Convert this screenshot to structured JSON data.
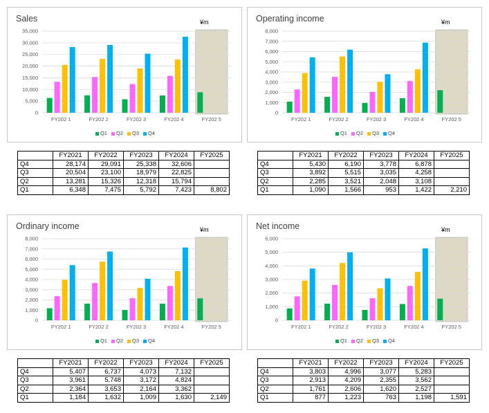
{
  "colors": {
    "Q1": "#00b050",
    "Q2": "#ff66ff",
    "Q3": "#ffc000",
    "Q4": "#00b0f0",
    "highlight": "#ddd9c4",
    "grid": "#d9d9d9",
    "axis_text": "#595959"
  },
  "chart_data": [
    {
      "type": "bar",
      "title": "Sales",
      "unit": "¥m",
      "categories": [
        "FY2021",
        "FY2022",
        "FY2023",
        "FY2024",
        "FY2025"
      ],
      "category_labels": [
        "FY202 1",
        "FY202 2",
        "FY202 3",
        "FY202 4",
        "FY202 5"
      ],
      "series": [
        {
          "name": "Q1",
          "values": [
            6348,
            7475,
            5792,
            7423,
            8802
          ]
        },
        {
          "name": "Q2",
          "values": [
            13281,
            15326,
            12318,
            15794,
            null
          ]
        },
        {
          "name": "Q3",
          "values": [
            20504,
            23100,
            18979,
            22825,
            null
          ]
        },
        {
          "name": "Q4",
          "values": [
            28174,
            29091,
            25338,
            32606,
            null
          ]
        }
      ],
      "ylim": [
        0,
        35000
      ],
      "yticks": [
        0,
        5000,
        10000,
        15000,
        20000,
        25000,
        30000,
        35000
      ],
      "ytick_labels": [
        "0",
        "5,000",
        "10,000",
        "15,000",
        "20,000",
        "25,000",
        "30,000",
        "35,000"
      ],
      "highlight_category": "FY2025",
      "legend_position": "bottom",
      "grid": true
    },
    {
      "type": "bar",
      "title": "Operating income",
      "unit": "¥m",
      "categories": [
        "FY2021",
        "FY2022",
        "FY2023",
        "FY2024",
        "FY2025"
      ],
      "category_labels": [
        "FY202 1",
        "FY202 2",
        "FY202 3",
        "FY202 4",
        "FY202 5"
      ],
      "series": [
        {
          "name": "Q1",
          "values": [
            1090,
            1566,
            953,
            1422,
            2210
          ]
        },
        {
          "name": "Q2",
          "values": [
            2285,
            3521,
            2048,
            3108,
            null
          ]
        },
        {
          "name": "Q3",
          "values": [
            3892,
            5515,
            3035,
            4258,
            null
          ]
        },
        {
          "name": "Q4",
          "values": [
            5430,
            6190,
            3778,
            6878,
            null
          ]
        }
      ],
      "ylim": [
        0,
        8000
      ],
      "yticks": [
        0,
        1000,
        2000,
        3000,
        4000,
        5000,
        6000,
        7000,
        8000
      ],
      "ytick_labels": [
        "0",
        "1,000",
        "2,000",
        "3,000",
        "4,000",
        "5,000",
        "6,000",
        "7,000",
        "8,000"
      ],
      "highlight_category": "FY2025",
      "legend_position": "bottom",
      "grid": true
    },
    {
      "type": "bar",
      "title": "Ordinary income",
      "unit": "¥m",
      "categories": [
        "FY2021",
        "FY2022",
        "FY2023",
        "FY2024",
        "FY2025"
      ],
      "category_labels": [
        "FY202 1",
        "FY202 2",
        "FY202 3",
        "FY202 4",
        "FY202 5"
      ],
      "series": [
        {
          "name": "Q1",
          "values": [
            1184,
            1632,
            1009,
            1630,
            2149
          ]
        },
        {
          "name": "Q2",
          "values": [
            2364,
            3653,
            2164,
            3362,
            null
          ]
        },
        {
          "name": "Q3",
          "values": [
            3961,
            5748,
            3172,
            4824,
            null
          ]
        },
        {
          "name": "Q4",
          "values": [
            5407,
            6737,
            4073,
            7132,
            null
          ]
        }
      ],
      "ylim": [
        0,
        8000
      ],
      "yticks": [
        0,
        1000,
        2000,
        3000,
        4000,
        5000,
        6000,
        7000,
        8000
      ],
      "ytick_labels": [
        "0",
        "1,000",
        "2,000",
        "3,000",
        "4,000",
        "5,000",
        "6,000",
        "7,000",
        "8,000"
      ],
      "highlight_category": "FY2025",
      "legend_position": "bottom",
      "grid": true
    },
    {
      "type": "bar",
      "title": "Net income",
      "unit": "¥m",
      "categories": [
        "FY2021",
        "FY2022",
        "FY2023",
        "FY2024",
        "FY2025"
      ],
      "category_labels": [
        "FY202 1",
        "FY202 2",
        "FY202 3",
        "FY202 4",
        "FY202 5"
      ],
      "series": [
        {
          "name": "Q1",
          "values": [
            877,
            1223,
            763,
            1198,
            1591
          ]
        },
        {
          "name": "Q2",
          "values": [
            1761,
            2606,
            1620,
            2527,
            null
          ]
        },
        {
          "name": "Q3",
          "values": [
            2913,
            4209,
            2355,
            3562,
            null
          ]
        },
        {
          "name": "Q4",
          "values": [
            3803,
            4996,
            3077,
            5283,
            null
          ]
        }
      ],
      "ylim": [
        0,
        6000
      ],
      "yticks": [
        0,
        1000,
        2000,
        3000,
        4000,
        5000,
        6000
      ],
      "ytick_labels": [
        "0",
        "1,000",
        "2,000",
        "3,000",
        "4,000",
        "5,000",
        "6,000"
      ],
      "highlight_category": "FY2025",
      "legend_position": "bottom",
      "grid": true
    }
  ],
  "tables": [
    {
      "header": [
        "FY2021",
        "FY2022",
        "FY2023",
        "FY2024",
        "FY2025"
      ],
      "rows": [
        {
          "label": "Q4",
          "cells": [
            "28,174",
            "29,091",
            "25,338",
            "32,606",
            ""
          ]
        },
        {
          "label": "Q3",
          "cells": [
            "20,504",
            "23,100",
            "18,979",
            "22,825",
            ""
          ]
        },
        {
          "label": "Q2",
          "cells": [
            "13,281",
            "15,326",
            "12,318",
            "15,794",
            ""
          ]
        },
        {
          "label": "Q1",
          "cells": [
            "6,348",
            "7,475",
            "5,792",
            "7,423",
            "8,802"
          ]
        }
      ]
    },
    {
      "header": [
        "FY2021",
        "FY2022",
        "FY2023",
        "FY2024",
        "FY2025"
      ],
      "rows": [
        {
          "label": "Q4",
          "cells": [
            "5,430",
            "6,190",
            "3,778",
            "6,878",
            ""
          ]
        },
        {
          "label": "Q3",
          "cells": [
            "3,892",
            "5,515",
            "3,035",
            "4,258",
            ""
          ]
        },
        {
          "label": "Q2",
          "cells": [
            "2,285",
            "3,521",
            "2,048",
            "3,108",
            ""
          ]
        },
        {
          "label": "Q1",
          "cells": [
            "1,090",
            "1,566",
            "953",
            "1,422",
            "2,210"
          ]
        }
      ]
    },
    {
      "header": [
        "FY2021",
        "FY2022",
        "FY2023",
        "FY2024",
        "FY2025"
      ],
      "rows": [
        {
          "label": "Q4",
          "cells": [
            "5,407",
            "6,737",
            "4,073",
            "7,132",
            ""
          ]
        },
        {
          "label": "Q3",
          "cells": [
            "3,961",
            "5,748",
            "3,172",
            "4,824",
            ""
          ]
        },
        {
          "label": "Q2",
          "cells": [
            "2,364",
            "3,653",
            "2,164",
            "3,362",
            ""
          ]
        },
        {
          "label": "Q1",
          "cells": [
            "1,184",
            "1,632",
            "1,009",
            "1,630",
            "2,149"
          ]
        }
      ]
    },
    {
      "header": [
        "FY2021",
        "FY2022",
        "FY2023",
        "FY2024",
        "FY2025"
      ],
      "rows": [
        {
          "label": "Q4",
          "cells": [
            "3,803",
            "4,996",
            "3,077",
            "5,283",
            ""
          ]
        },
        {
          "label": "Q3",
          "cells": [
            "2,913",
            "4,209",
            "2,355",
            "3,562",
            ""
          ]
        },
        {
          "label": "Q2",
          "cells": [
            "1,761",
            "2,606",
            "1,620",
            "2,527",
            ""
          ]
        },
        {
          "label": "Q1",
          "cells": [
            "877",
            "1,223",
            "763",
            "1,198",
            "1,591"
          ]
        }
      ]
    }
  ]
}
